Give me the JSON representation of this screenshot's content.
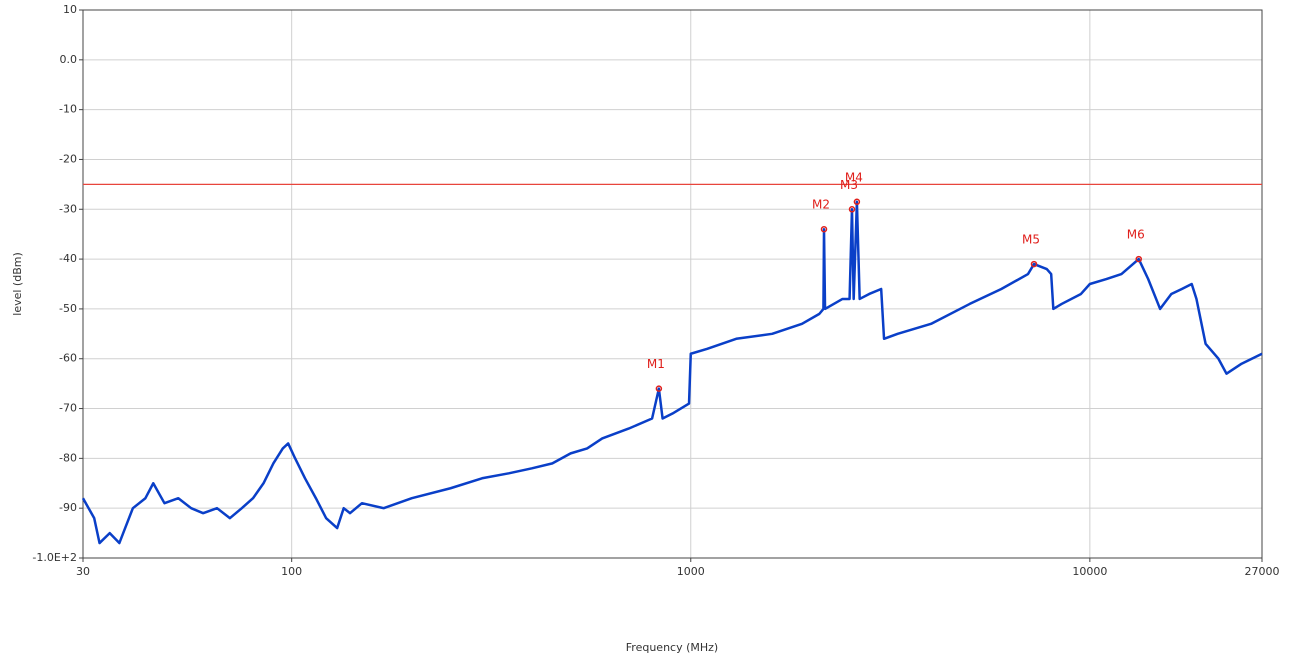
{
  "chart_data": {
    "type": "line",
    "xlabel": "Frequency (MHz)",
    "ylabel": "level (dBm)",
    "xscale": "log",
    "grid": true,
    "xlim": [
      30,
      27000
    ],
    "ylim": [
      -100,
      10
    ],
    "xticks": [
      30,
      100,
      1000,
      10000,
      27000
    ],
    "yticks": [
      10,
      {
        "value": 0,
        "label": "0.0"
      },
      -10,
      -20,
      -30,
      -40,
      -50,
      -60,
      -70,
      -80,
      -90,
      {
        "value": -100,
        "label": "-1.0E+2"
      }
    ],
    "limit": -25,
    "limit_color": "#e8453c",
    "series": [
      {
        "color": "#0a3fc8",
        "x": [
          30,
          32,
          33,
          35,
          37,
          40,
          43,
          45,
          48,
          52,
          56,
          60,
          65,
          70,
          75,
          80,
          85,
          90,
          95,
          98,
          102,
          108,
          115,
          122,
          130,
          135,
          140,
          150,
          170,
          200,
          250,
          300,
          350,
          400,
          450,
          500,
          550,
          600,
          700,
          800,
          832,
          850,
          900,
          990,
          1000,
          1100,
          1300,
          1600,
          1900,
          2100,
          2150,
          2157,
          2170,
          2400,
          2500,
          2535,
          2560,
          2608,
          2650,
          2800,
          3000,
          3050,
          3300,
          4000,
          5000,
          6000,
          7000,
          7245,
          7800,
          8000,
          8100,
          8500,
          9500,
          10000,
          11000,
          12000,
          13260,
          14000,
          15000,
          16000,
          17000,
          18000,
          18500,
          19500,
          21000,
          22000,
          24000,
          27000
        ],
        "values": [
          -88,
          -92,
          -97,
          -95,
          -97,
          -90,
          -88,
          -85,
          -89,
          -88,
          -90,
          -91,
          -90,
          -92,
          -90,
          -88,
          -85,
          -81,
          -78,
          -77,
          -80,
          -84,
          -88,
          -92,
          -94,
          -90,
          -91,
          -89,
          -90,
          -88,
          -86,
          -84,
          -83,
          -82,
          -81,
          -79,
          -78,
          -76,
          -74,
          -72,
          -66,
          -72,
          -71,
          -69,
          -59,
          -58,
          -56,
          -55,
          -53,
          -51,
          -50,
          -34,
          -50,
          -48,
          -48,
          -30,
          -48,
          -28.5,
          -48,
          -47,
          -46,
          -56,
          -55,
          -53,
          -49,
          -46,
          -43,
          -41,
          -42,
          -43,
          -50,
          -49,
          -47,
          -45,
          -44,
          -43,
          -40,
          -44,
          -50,
          -47,
          -46,
          -45,
          -48,
          -57,
          -60,
          -63,
          -61,
          -59
        ]
      }
    ],
    "markers": [
      {
        "label": "M1",
        "x": 832,
        "y": -66
      },
      {
        "label": "M2",
        "x": 2157,
        "y": -34
      },
      {
        "label": "M3",
        "x": 2535,
        "y": -30
      },
      {
        "label": "M4",
        "x": 2608,
        "y": -28.5
      },
      {
        "label": "M5",
        "x": 7245,
        "y": -41
      },
      {
        "label": "M6",
        "x": 13260,
        "y": -40
      }
    ],
    "marker_color": "#e0201c"
  }
}
